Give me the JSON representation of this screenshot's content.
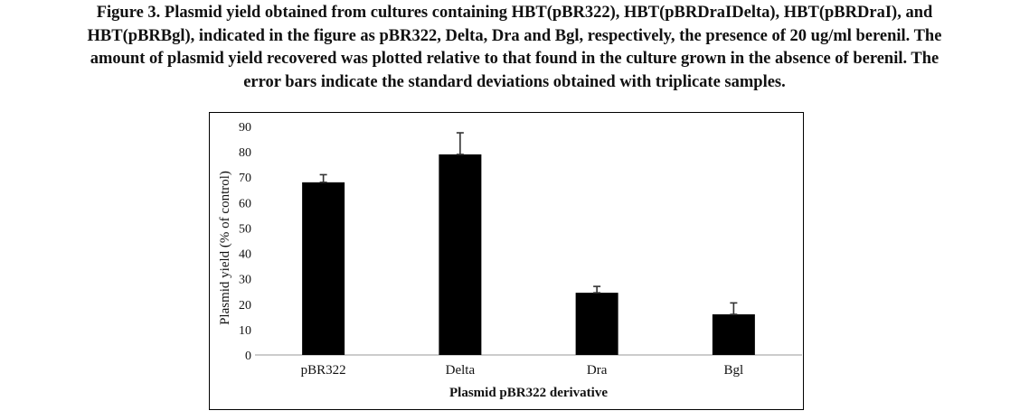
{
  "caption_lines": [
    "Figure 3. Plasmid yield obtained from cultures containing HBT(pBR322), HBT(pBRDraIDelta), HBT(pBRDraI), and",
    "HBT(pBRBgl), indicated in the figure as pBR322, Delta, Dra and Bgl, respectively, the presence of 20 ug/ml berenil. The",
    "amount of plasmid yield recovered was plotted relative to that found in the culture grown in the absence of berenil. The",
    "error bars indicate the standard deviations obtained with triplicate samples."
  ],
  "chart_data": {
    "type": "bar",
    "categories": [
      "pBR322",
      "Delta",
      "Dra",
      "Bgl"
    ],
    "values": [
      68,
      79,
      24.5,
      16
    ],
    "error_plus": [
      3,
      8.5,
      2.5,
      4.5
    ],
    "error_minus": [
      0,
      0,
      0,
      0
    ],
    "xlabel": "Plasmid pBR322 derivative",
    "ylabel": "Plasmid yield (% of control)",
    "ylim": [
      0,
      90
    ],
    "yticks": [
      "0",
      "10",
      "20",
      "30",
      "40",
      "50",
      "60",
      "70",
      "80",
      "90"
    ],
    "grid": false,
    "legend": "none",
    "bar_color": "#000000",
    "axis_color": "#999999",
    "text_color": "#111111"
  }
}
